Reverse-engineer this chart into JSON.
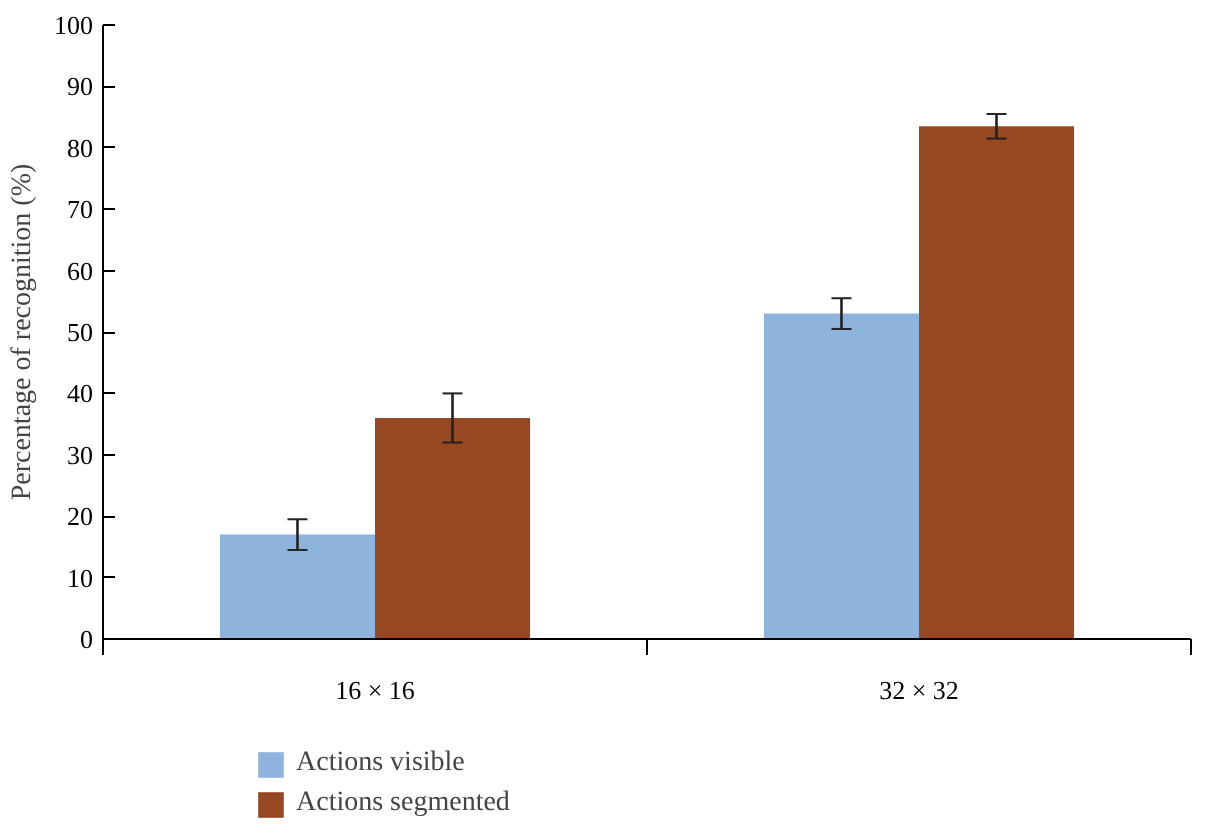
{
  "chart_data": {
    "type": "bar",
    "ylabel": "Percentage of recognition (%)",
    "categories": [
      "16 × 16",
      "32 × 32"
    ],
    "series": [
      {
        "name": "Actions visible",
        "color": "#8eb4de",
        "values": [
          17,
          53
        ],
        "errors": [
          2.5,
          2.5
        ]
      },
      {
        "name": "Actions segmented",
        "color": "#964822",
        "values": [
          36,
          83.5
        ],
        "errors": [
          4,
          2
        ]
      }
    ],
    "ylim": [
      0,
      100
    ],
    "yticks": [
      0,
      10,
      20,
      30,
      40,
      50,
      60,
      70,
      80,
      90,
      100
    ],
    "grid": false,
    "legend": "bottom"
  }
}
